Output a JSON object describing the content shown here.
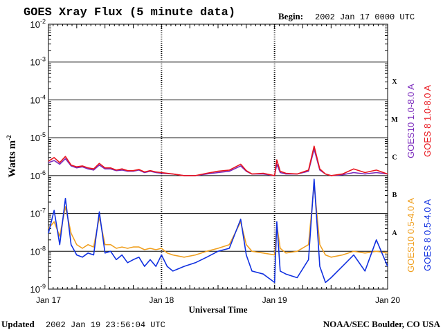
{
  "chart_data": {
    "type": "line",
    "title": "GOES Xray Flux (5 minute data)",
    "begin_label": "Begin:",
    "begin_value": "2002 Jan 17 0000 UTC",
    "ylabel": "Watts m",
    "ylabel_sup": "-2",
    "xlabel": "Universal Time",
    "yscale": "log",
    "ylim": [
      1e-09,
      0.01
    ],
    "xlim": [
      0,
      3
    ],
    "x_ticks": [
      {
        "x": 0,
        "label": "Jan 17"
      },
      {
        "x": 1,
        "label": "Jan 18"
      },
      {
        "x": 2,
        "label": "Jan 19"
      },
      {
        "x": 3,
        "label": "Jan 20"
      }
    ],
    "y_ticks": [
      {
        "exp": -2,
        "base": "10",
        "sup": "-2"
      },
      {
        "exp": -3,
        "base": "10",
        "sup": "-3"
      },
      {
        "exp": -4,
        "base": "10",
        "sup": "-4"
      },
      {
        "exp": -5,
        "base": "10",
        "sup": "-5"
      },
      {
        "exp": -6,
        "base": "10",
        "sup": "-6"
      },
      {
        "exp": -7,
        "base": "10",
        "sup": "-7"
      },
      {
        "exp": -8,
        "base": "10",
        "sup": "-8"
      },
      {
        "exp": -9,
        "base": "10",
        "sup": "-9"
      }
    ],
    "flare_classes": [
      {
        "label": "X",
        "exp": -3.5
      },
      {
        "label": "M",
        "exp": -4.5
      },
      {
        "label": "C",
        "exp": -5.5
      },
      {
        "label": "B",
        "exp": -6.5
      },
      {
        "label": "A",
        "exp": -7.5
      }
    ],
    "colors": {
      "goes10_long": "#7b2bbd",
      "goes8_long": "#e8141c",
      "goes10_short": "#f0a020",
      "goes8_short": "#1030e0"
    },
    "series": [
      {
        "name": "GOES10 1.0-8.0 A",
        "key": "goes10_long",
        "x": [
          0,
          0.05,
          0.1,
          0.15,
          0.2,
          0.25,
          0.3,
          0.35,
          0.4,
          0.45,
          0.5,
          0.55,
          0.6,
          0.65,
          0.7,
          0.75,
          0.8,
          0.85,
          0.9,
          0.95,
          1.0,
          1.1,
          1.2,
          1.3,
          1.4,
          1.5,
          1.6,
          1.7,
          1.75,
          1.8,
          1.9,
          2.0,
          2.02,
          2.05,
          2.1,
          2.2,
          2.3,
          2.35,
          2.4,
          2.45,
          2.5,
          2.6,
          2.7,
          2.8,
          2.9,
          3.0
        ],
        "y": [
          2.2e-06,
          2.5e-06,
          2e-06,
          2.8e-06,
          1.8e-06,
          1.6e-06,
          1.7e-06,
          1.5e-06,
          1.4e-06,
          1.9e-06,
          1.5e-06,
          1.5e-06,
          1.35e-06,
          1.4e-06,
          1.3e-06,
          1.3e-06,
          1.4e-06,
          1.2e-06,
          1.3e-06,
          1.2e-06,
          1.15e-06,
          1.1e-06,
          1e-06,
          1e-06,
          1.1e-06,
          1.2e-06,
          1.3e-06,
          1.8e-06,
          1.3e-06,
          1.1e-06,
          1.1e-06,
          1e-06,
          2e-06,
          1.2e-06,
          1.1e-06,
          1.1e-06,
          1.3e-06,
          5e-06,
          1.4e-06,
          1.1e-06,
          1e-06,
          1.05e-06,
          1.2e-06,
          1.1e-06,
          1.2e-06,
          1.1e-06
        ]
      },
      {
        "name": "GOES 8 1.0-8.0 A",
        "key": "goes8_long",
        "x": [
          0,
          0.05,
          0.1,
          0.15,
          0.2,
          0.25,
          0.3,
          0.35,
          0.4,
          0.45,
          0.5,
          0.55,
          0.6,
          0.65,
          0.7,
          0.75,
          0.8,
          0.85,
          0.9,
          0.95,
          1.0,
          1.1,
          1.2,
          1.3,
          1.4,
          1.5,
          1.6,
          1.7,
          1.75,
          1.8,
          1.9,
          2.0,
          2.02,
          2.05,
          2.1,
          2.2,
          2.3,
          2.35,
          2.4,
          2.45,
          2.5,
          2.6,
          2.7,
          2.8,
          2.9,
          3.0
        ],
        "y": [
          2.4e-06,
          3e-06,
          2.2e-06,
          3.2e-06,
          1.9e-06,
          1.7e-06,
          1.8e-06,
          1.6e-06,
          1.5e-06,
          2.1e-06,
          1.6e-06,
          1.6e-06,
          1.4e-06,
          1.5e-06,
          1.35e-06,
          1.35e-06,
          1.45e-06,
          1.25e-06,
          1.35e-06,
          1.25e-06,
          1.2e-06,
          1.1e-06,
          1e-06,
          1e-06,
          1.15e-06,
          1.3e-06,
          1.4e-06,
          2e-06,
          1.35e-06,
          1.1e-06,
          1.15e-06,
          1e-06,
          2.6e-06,
          1.3e-06,
          1.15e-06,
          1.1e-06,
          1.4e-06,
          6e-06,
          1.5e-06,
          1.1e-06,
          1e-06,
          1.1e-06,
          1.5e-06,
          1.2e-06,
          1.4e-06,
          1.1e-06
        ]
      },
      {
        "name": "GOES10 0.5-4.0 A",
        "key": "goes10_short",
        "x": [
          0,
          0.05,
          0.1,
          0.15,
          0.2,
          0.25,
          0.3,
          0.35,
          0.4,
          0.45,
          0.5,
          0.55,
          0.6,
          0.65,
          0.7,
          0.75,
          0.8,
          0.85,
          0.9,
          0.95,
          1.0,
          1.05,
          1.1,
          1.2,
          1.3,
          1.4,
          1.5,
          1.6,
          1.7,
          1.75,
          1.8,
          1.9,
          2.0,
          2.02,
          2.05,
          2.1,
          2.2,
          2.3,
          2.35,
          2.4,
          2.45,
          2.5,
          2.6,
          2.7,
          2.8,
          2.9,
          3.0
        ],
        "y": [
          4e-08,
          6e-08,
          2.5e-08,
          1.5e-07,
          3e-08,
          1.5e-08,
          1.2e-08,
          1.5e-08,
          1.3e-08,
          8e-08,
          1.5e-08,
          1.5e-08,
          1.2e-08,
          1.3e-08,
          1.2e-08,
          1.3e-08,
          1.3e-08,
          1.1e-08,
          1.2e-08,
          1.1e-08,
          1.2e-08,
          9e-09,
          8e-09,
          7e-09,
          8e-09,
          1e-08,
          1.2e-08,
          1.5e-08,
          6e-08,
          1.5e-08,
          1e-08,
          9e-09,
          8e-09,
          5e-08,
          1.2e-08,
          9e-09,
          1e-08,
          1.5e-08,
          6e-07,
          1.5e-08,
          8e-09,
          7e-09,
          8e-09,
          1e-08,
          9e-09,
          1e-08,
          9e-09
        ]
      },
      {
        "name": "GOES 8 0.5-4.0 A",
        "key": "goes8_short",
        "x": [
          0,
          0.05,
          0.1,
          0.15,
          0.2,
          0.25,
          0.3,
          0.35,
          0.4,
          0.45,
          0.5,
          0.55,
          0.6,
          0.65,
          0.7,
          0.75,
          0.8,
          0.85,
          0.9,
          0.95,
          1.0,
          1.05,
          1.1,
          1.2,
          1.3,
          1.4,
          1.5,
          1.6,
          1.7,
          1.75,
          1.8,
          1.9,
          2.0,
          2.02,
          2.05,
          2.1,
          2.2,
          2.3,
          2.35,
          2.4,
          2.45,
          2.5,
          2.6,
          2.7,
          2.8,
          2.9,
          3.0
        ],
        "y": [
          3e-08,
          1.2e-07,
          1.5e-08,
          2.5e-07,
          1.5e-08,
          8e-09,
          7e-09,
          9e-09,
          8e-09,
          1.1e-07,
          9e-09,
          1e-08,
          6e-09,
          8e-09,
          5e-09,
          6e-09,
          7e-09,
          4e-09,
          6e-09,
          4e-09,
          8e-09,
          4e-09,
          3e-09,
          4e-09,
          5e-09,
          7e-09,
          1e-08,
          1.2e-08,
          7e-08,
          8e-09,
          3e-09,
          2.5e-09,
          1.5e-09,
          6e-08,
          3e-09,
          2.5e-09,
          2e-09,
          6e-09,
          8e-07,
          4e-09,
          1.5e-09,
          2e-09,
          4e-09,
          8e-09,
          3e-09,
          2e-08,
          4e-09
        ]
      }
    ]
  },
  "footer": {
    "updated_label": "Updated",
    "updated_value": "2002 Jan 19 23:56:04 UTC",
    "credit": "NOAA/SEC Boulder, CO USA"
  }
}
